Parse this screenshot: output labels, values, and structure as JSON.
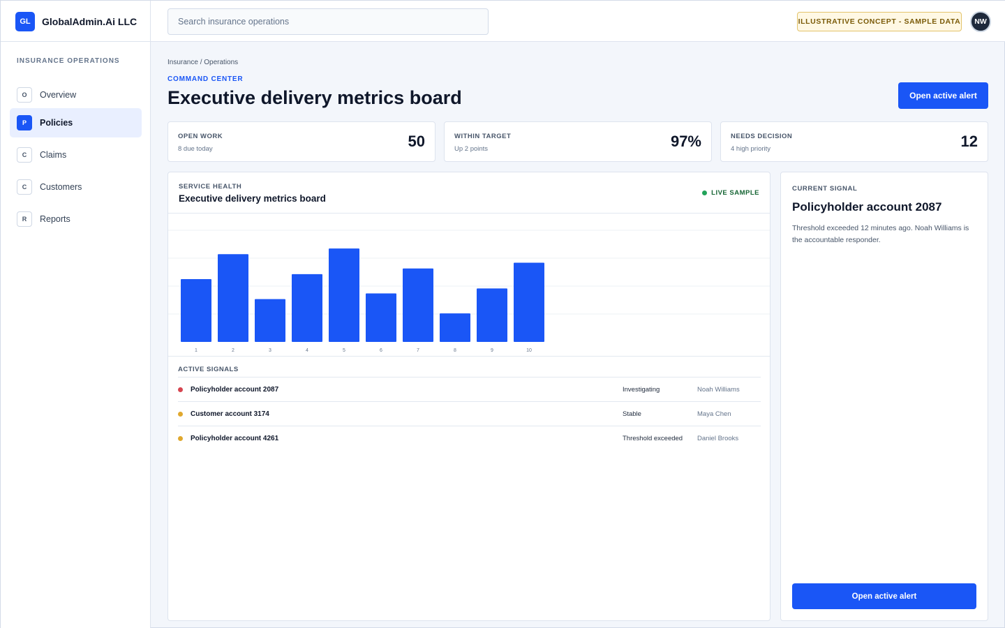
{
  "brand": {
    "logo": "GL",
    "name": "GlobalAdmin.Ai LLC"
  },
  "search": {
    "placeholder": "Search insurance operations",
    "value": ""
  },
  "concept_badge": "ILLUSTRATIVE CONCEPT - SAMPLE DATA",
  "user": {
    "initials": "NW"
  },
  "sidebar": {
    "heading": "INSURANCE OPERATIONS",
    "items": [
      {
        "badge": "O",
        "label": "Overview",
        "active": false
      },
      {
        "badge": "P",
        "label": "Policies",
        "active": true
      },
      {
        "badge": "C",
        "label": "Claims",
        "active": false
      },
      {
        "badge": "C",
        "label": "Customers",
        "active": false
      },
      {
        "badge": "R",
        "label": "Reports",
        "active": false
      }
    ]
  },
  "header": {
    "breadcrumb": "Insurance / Operations",
    "eyebrow": "COMMAND CENTER",
    "title": "Executive delivery metrics board",
    "action_label": "Open active alert"
  },
  "kpis": [
    {
      "label": "OPEN WORK",
      "sub": "8 due today",
      "value": "50"
    },
    {
      "label": "WITHIN TARGET",
      "sub": "Up 2 points",
      "value": "97%"
    },
    {
      "label": "NEEDS DECISION",
      "sub": "4 high priority",
      "value": "12"
    }
  ],
  "panel": {
    "eyebrow": "SERVICE HEALTH",
    "title": "Executive delivery metrics board",
    "live_label": "LIVE SAMPLE",
    "signals_heading": "ACTIVE SIGNALS"
  },
  "chart_data": {
    "type": "bar",
    "categories": [
      "1",
      "2",
      "3",
      "4",
      "5",
      "6",
      "7",
      "8",
      "9",
      "10"
    ],
    "values": [
      88,
      123,
      60,
      95,
      131,
      68,
      103,
      40,
      75,
      111
    ],
    "ylim": [
      0,
      180
    ],
    "grid": true,
    "title": "",
    "xlabel": "",
    "ylabel": "",
    "bar_color": "#1a56f6"
  },
  "signals": [
    {
      "name": "Policyholder account 2087",
      "status": "Investigating",
      "owner": "Noah Williams",
      "color": "#d64550"
    },
    {
      "name": "Customer account 3174",
      "status": "Stable",
      "owner": "Maya Chen",
      "color": "#e0a82e"
    },
    {
      "name": "Policyholder account 4261",
      "status": "Threshold exceeded",
      "owner": "Daniel Brooks",
      "color": "#e0a82e"
    }
  ],
  "current_signal": {
    "eyebrow": "CURRENT SIGNAL",
    "title": "Policyholder account 2087",
    "description": "Threshold exceeded 12 minutes ago. Noah Williams is the accountable responder.",
    "action_label": "Open active alert"
  },
  "colors": {
    "accent": "#1a56f6",
    "live": "#22a35a"
  }
}
